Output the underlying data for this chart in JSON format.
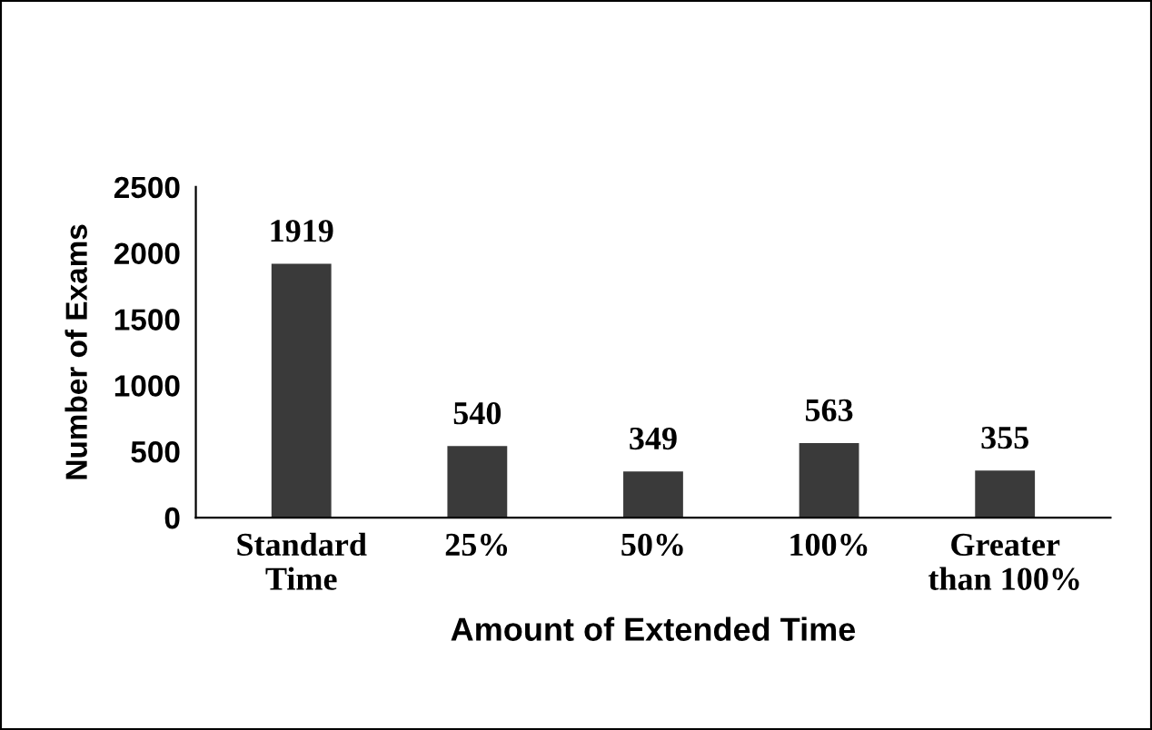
{
  "chart_data": {
    "type": "bar",
    "xlabel": "Amount of Extended Time",
    "ylabel": "Number of Exams",
    "categories": [
      "Standard\nTime",
      "25%",
      "50%",
      "100%",
      "Greater\nthan 100%"
    ],
    "values": [
      1919,
      540,
      349,
      563,
      355
    ],
    "color": "#3a3a3a",
    "ylim": [
      0,
      2500
    ],
    "yticks": [
      0,
      500,
      1000,
      1500,
      2000,
      2500
    ],
    "grid": false,
    "data_labels": true
  }
}
